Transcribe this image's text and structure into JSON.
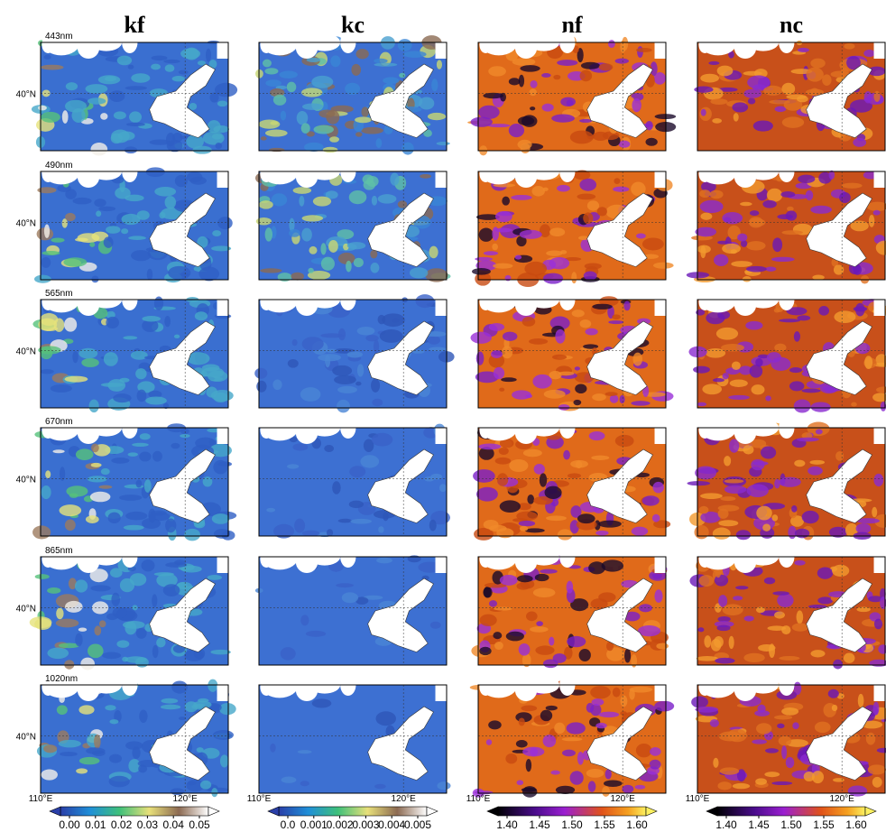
{
  "columns": [
    {
      "title": "kf",
      "colorbar_ticks": [
        "0.00",
        "0.01",
        "0.02",
        "0.03",
        "0.04",
        "0.05"
      ]
    },
    {
      "title": "kc",
      "colorbar_ticks": [
        "0.0",
        "0.001",
        "0.002",
        "0.003",
        "0.004",
        "0.005"
      ]
    },
    {
      "title": "nf",
      "colorbar_ticks": [
        "1.40",
        "1.45",
        "1.50",
        "1.55",
        "1.60"
      ]
    },
    {
      "title": "nc",
      "colorbar_ticks": [
        "1.40",
        "1.45",
        "1.50",
        "1.55",
        "1.60"
      ]
    }
  ],
  "rows": [
    "443nm",
    "490nm",
    "565nm",
    "670nm",
    "865nm",
    "1020nm"
  ],
  "lat_label": "40°N",
  "lon_labels": [
    "110°E",
    "120°E"
  ]
}
